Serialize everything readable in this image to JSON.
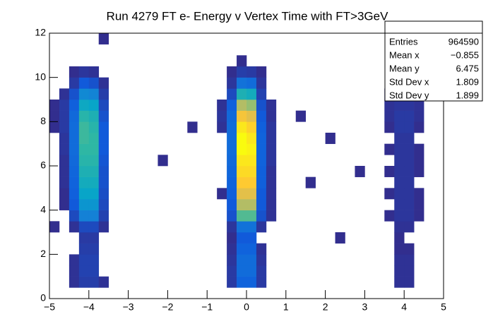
{
  "chart_data": {
    "type": "heatmap",
    "title": "Run 4279 FT e- Energy  v Vertex Time with FT>3GeV",
    "xlim": [
      -5,
      5
    ],
    "ylim": [
      0,
      12
    ],
    "xticks": [
      {
        "value": -5,
        "label": "−5"
      },
      {
        "value": -4,
        "label": "−4"
      },
      {
        "value": -3,
        "label": "−3"
      },
      {
        "value": -2,
        "label": "−2"
      },
      {
        "value": -1,
        "label": "−1"
      },
      0,
      1,
      2,
      3,
      4,
      5
    ],
    "yticks": [
      0,
      2,
      4,
      6,
      8,
      10,
      12
    ],
    "palette": [
      "#352a87",
      "#0f5cdd",
      "#1481d6",
      "#06a4ca",
      "#2eb7a4",
      "#87bf77",
      "#d1bb59",
      "#fec832",
      "#f9fb0e"
    ],
    "z": [
      [
        0,
        0,
        0,
        0,
        0,
        0,
        0,
        0,
        0,
        0,
        0,
        0,
        0,
        0,
        0,
        0,
        0,
        0,
        0,
        0,
        0,
        0,
        0,
        0,
        0,
        0,
        0,
        0,
        0,
        0,
        0,
        0,
        0,
        0,
        0,
        0,
        0,
        0,
        0,
        0
      ],
      [
        0,
        0,
        2,
        5,
        5,
        2,
        0,
        0,
        0,
        0,
        0,
        0,
        0,
        0,
        0,
        0,
        0,
        0,
        4,
        15,
        15,
        4,
        0,
        0,
        0,
        0,
        0,
        0,
        0,
        0,
        0,
        0,
        0,
        0,
        0,
        2,
        2,
        0,
        0,
        0
      ],
      [
        0,
        0,
        2,
        6,
        6,
        0,
        0,
        0,
        0,
        0,
        0,
        0,
        0,
        0,
        0,
        0,
        0,
        0,
        4,
        18,
        18,
        4,
        0,
        0,
        0,
        0,
        0,
        0,
        0,
        0,
        0,
        0,
        0,
        0,
        0,
        2,
        2,
        0,
        0,
        0
      ],
      [
        0,
        0,
        2,
        6,
        6,
        0,
        0,
        0,
        0,
        0,
        0,
        0,
        0,
        0,
        0,
        0,
        0,
        0,
        3,
        18,
        18,
        3,
        0,
        0,
        0,
        0,
        0,
        0,
        0,
        0,
        0,
        0,
        0,
        0,
        0,
        2,
        2,
        0,
        0,
        0
      ],
      [
        0,
        0,
        0,
        5,
        5,
        0,
        0,
        0,
        0,
        0,
        0,
        0,
        0,
        0,
        0,
        0,
        0,
        0,
        2,
        15,
        15,
        2,
        0,
        0,
        0,
        0,
        0,
        0,
        0,
        0,
        0,
        0,
        0,
        0,
        0,
        1,
        1,
        0,
        0,
        0
      ],
      [
        0,
        0,
        0,
        4,
        4,
        0,
        0,
        0,
        0,
        0,
        0,
        0,
        0,
        0,
        0,
        0,
        0,
        0,
        1,
        12,
        12,
        0,
        0,
        0,
        0,
        0,
        0,
        0,
        0,
        1,
        0,
        0,
        0,
        0,
        0,
        1,
        0,
        0,
        0,
        0
      ],
      [
        1,
        0,
        2,
        8,
        8,
        2,
        0,
        0,
        0,
        0,
        0,
        0,
        0,
        0,
        0,
        0,
        0,
        0,
        3,
        20,
        20,
        3,
        0,
        0,
        0,
        0,
        0,
        0,
        0,
        0,
        0,
        0,
        0,
        0,
        0,
        2,
        2,
        0,
        0,
        0
      ],
      [
        0,
        0,
        8,
        25,
        25,
        6,
        0,
        0,
        0,
        0,
        0,
        0,
        0,
        0,
        0,
        0,
        0,
        0,
        10,
        55,
        55,
        10,
        2,
        0,
        0,
        0,
        0,
        0,
        0,
        0,
        0,
        0,
        0,
        0,
        1,
        3,
        3,
        1,
        0,
        0
      ],
      [
        0,
        1,
        12,
        32,
        32,
        8,
        0,
        0,
        0,
        0,
        0,
        0,
        0,
        0,
        0,
        0,
        0,
        0,
        12,
        70,
        70,
        12,
        2,
        0,
        0,
        0,
        0,
        0,
        0,
        0,
        0,
        0,
        0,
        0,
        0,
        3,
        3,
        1,
        0,
        0
      ],
      [
        0,
        1,
        14,
        38,
        38,
        9,
        0,
        0,
        0,
        0,
        0,
        0,
        0,
        0,
        0,
        0,
        0,
        1,
        14,
        80,
        80,
        12,
        2,
        0,
        0,
        0,
        0,
        0,
        0,
        0,
        0,
        0,
        0,
        0,
        1,
        3,
        3,
        1,
        0,
        0
      ],
      [
        0,
        2,
        15,
        42,
        42,
        10,
        0,
        0,
        0,
        0,
        0,
        0,
        0,
        0,
        0,
        0,
        0,
        0,
        15,
        88,
        88,
        14,
        2,
        0,
        0,
        0,
        1,
        0,
        0,
        0,
        0,
        0,
        0,
        0,
        0,
        3,
        3,
        0,
        0,
        0
      ],
      [
        0,
        2,
        16,
        45,
        45,
        10,
        0,
        0,
        0,
        0,
        0,
        0,
        0,
        0,
        0,
        0,
        0,
        0,
        16,
        92,
        92,
        14,
        2,
        0,
        0,
        0,
        0,
        0,
        0,
        0,
        0,
        1,
        0,
        0,
        1,
        3,
        3,
        1,
        0,
        0
      ],
      [
        0,
        2,
        17,
        48,
        48,
        11,
        0,
        0,
        0,
        0,
        0,
        1,
        0,
        0,
        0,
        0,
        0,
        0,
        17,
        95,
        95,
        15,
        3,
        0,
        0,
        0,
        0,
        0,
        0,
        0,
        0,
        0,
        0,
        0,
        0,
        3,
        3,
        1,
        0,
        0
      ],
      [
        0,
        3,
        18,
        50,
        50,
        12,
        0,
        0,
        0,
        0,
        0,
        0,
        0,
        0,
        0,
        0,
        0,
        0,
        18,
        100,
        98,
        15,
        3,
        0,
        0,
        0,
        0,
        0,
        0,
        0,
        0,
        0,
        0,
        0,
        1,
        3,
        3,
        1,
        0,
        0
      ],
      [
        0,
        3,
        18,
        52,
        50,
        12,
        0,
        0,
        0,
        0,
        0,
        0,
        0,
        0,
        0,
        0,
        0,
        0,
        18,
        100,
        95,
        15,
        3,
        0,
        0,
        0,
        0,
        0,
        1,
        0,
        0,
        0,
        0,
        0,
        0,
        3,
        3,
        0,
        0,
        0
      ],
      [
        1,
        4,
        18,
        52,
        48,
        12,
        0,
        0,
        0,
        0,
        0,
        0,
        0,
        0,
        1,
        0,
        0,
        2,
        18,
        95,
        90,
        14,
        3,
        0,
        0,
        0,
        0,
        0,
        0,
        0,
        0,
        0,
        0,
        0,
        1,
        4,
        4,
        1,
        0,
        0
      ],
      [
        1,
        4,
        17,
        48,
        45,
        10,
        0,
        0,
        0,
        0,
        0,
        0,
        0,
        0,
        0,
        0,
        0,
        3,
        17,
        85,
        80,
        12,
        2,
        0,
        0,
        1,
        0,
        0,
        0,
        0,
        0,
        0,
        0,
        0,
        2,
        4,
        4,
        2,
        0,
        0
      ],
      [
        1,
        4,
        14,
        40,
        38,
        8,
        0,
        0,
        0,
        0,
        0,
        0,
        0,
        0,
        0,
        0,
        0,
        2,
        14,
        70,
        65,
        10,
        2,
        0,
        0,
        0,
        0,
        0,
        0,
        0,
        0,
        0,
        0,
        0,
        2,
        3,
        3,
        2,
        0,
        0
      ],
      [
        0,
        2,
        10,
        28,
        26,
        5,
        0,
        0,
        0,
        0,
        0,
        0,
        0,
        0,
        0,
        0,
        0,
        0,
        8,
        45,
        42,
        6,
        0,
        0,
        0,
        0,
        0,
        0,
        0,
        0,
        0,
        0,
        0,
        0,
        1,
        2,
        2,
        0,
        0,
        0
      ],
      [
        0,
        0,
        4,
        12,
        10,
        2,
        0,
        0,
        0,
        0,
        0,
        0,
        0,
        0,
        0,
        0,
        0,
        0,
        3,
        20,
        18,
        3,
        0,
        0,
        0,
        0,
        0,
        0,
        0,
        0,
        0,
        0,
        0,
        0,
        0,
        0,
        0,
        0,
        0,
        0
      ],
      [
        0,
        0,
        1,
        3,
        2,
        0,
        0,
        0,
        0,
        0,
        0,
        0,
        0,
        0,
        0,
        0,
        0,
        0,
        1,
        5,
        4,
        1,
        0,
        0,
        0,
        0,
        0,
        0,
        0,
        0,
        0,
        0,
        0,
        0,
        0,
        0,
        0,
        0,
        0,
        0
      ],
      [
        0,
        0,
        0,
        0,
        0,
        0,
        0,
        0,
        0,
        0,
        0,
        0,
        0,
        0,
        0,
        0,
        0,
        0,
        0,
        1,
        0,
        0,
        0,
        0,
        0,
        0,
        0,
        0,
        0,
        0,
        0,
        0,
        0,
        0,
        0,
        0,
        0,
        0,
        0,
        0
      ],
      [
        0,
        0,
        0,
        0,
        0,
        0,
        0,
        0,
        0,
        0,
        0,
        0,
        0,
        0,
        0,
        0,
        0,
        0,
        0,
        0,
        0,
        0,
        0,
        0,
        0,
        0,
        0,
        0,
        0,
        0,
        0,
        0,
        0,
        0,
        0,
        0,
        0,
        0,
        0,
        0
      ],
      [
        0,
        0,
        0,
        0,
        0,
        1,
        0,
        0,
        0,
        0,
        0,
        0,
        0,
        0,
        0,
        0,
        0,
        0,
        0,
        0,
        0,
        0,
        0,
        0,
        0,
        0,
        0,
        0,
        0,
        0,
        0,
        0,
        0,
        0,
        0,
        0,
        0,
        0,
        0,
        0
      ]
    ],
    "stats": [
      {
        "label": "Entries",
        "value": "964590"
      },
      {
        "label": "Mean x",
        "value": "−0.855"
      },
      {
        "label": "Mean y",
        "value": "6.475"
      },
      {
        "label": "Std Dev x",
        "value": "1.809"
      },
      {
        "label": "Std Dev y",
        "value": "1.899"
      }
    ]
  }
}
